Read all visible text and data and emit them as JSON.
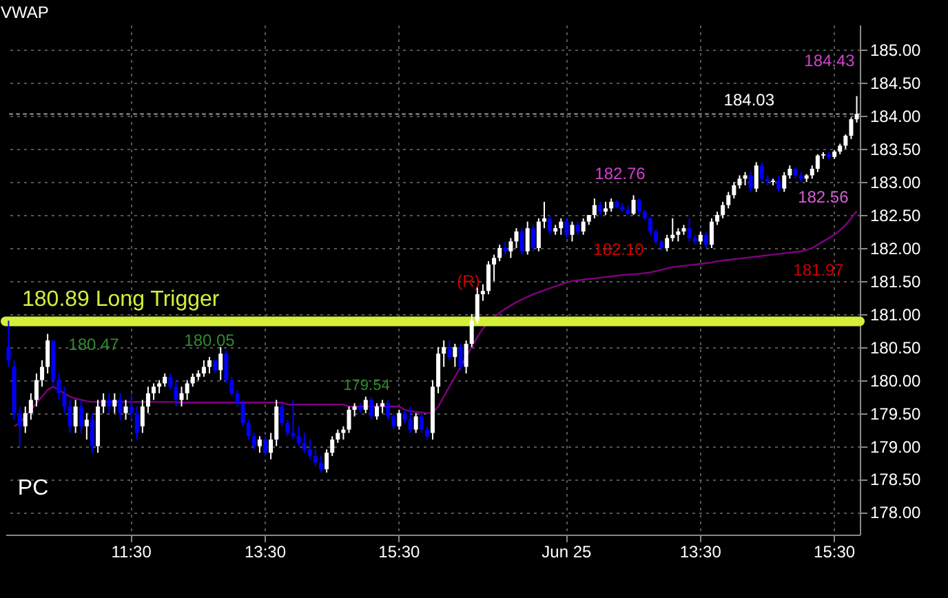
{
  "chart_data": {
    "type": "candlestick",
    "title": "VWAP",
    "categories": [
      null,
      null,
      null,
      null,
      null,
      null,
      null,
      null,
      null,
      null,
      null,
      null,
      null,
      null,
      null,
      null,
      null,
      null,
      null,
      null,
      null,
      null,
      "11:30",
      null,
      null,
      null,
      null,
      null,
      null,
      null,
      null,
      null,
      null,
      null,
      null,
      null,
      null,
      null,
      null,
      null,
      null,
      null,
      null,
      null,
      null,
      null,
      "13:30",
      null,
      null,
      null,
      null,
      null,
      null,
      null,
      null,
      null,
      null,
      null,
      null,
      null,
      null,
      null,
      null,
      null,
      null,
      null,
      null,
      null,
      null,
      null,
      "15:30",
      null,
      null,
      null,
      null,
      null,
      null,
      null,
      null,
      null,
      null,
      null,
      null,
      null,
      null,
      null,
      null,
      null,
      null,
      null,
      null,
      null,
      null,
      null,
      null,
      null,
      null,
      null,
      null,
      null,
      "Jun 25",
      null,
      null,
      null,
      null,
      null,
      null,
      null,
      null,
      null,
      null,
      null,
      null,
      null,
      null,
      null,
      null,
      null,
      null,
      null,
      null,
      null,
      null,
      null,
      "13:30",
      null,
      null,
      null,
      null,
      null,
      null,
      null,
      null,
      null,
      null,
      null,
      null,
      null,
      null,
      null,
      null,
      null,
      null,
      null,
      null,
      null,
      null,
      null,
      "15:30",
      null,
      null,
      null,
      null
    ],
    "ohlc": [
      [
        180.5,
        180.9,
        180.2,
        180.3
      ],
      [
        180.2,
        180.3,
        179.4,
        179.5
      ],
      [
        179.5,
        179.6,
        179.0,
        179.3
      ],
      [
        179.3,
        179.6,
        179.2,
        179.5
      ],
      [
        179.5,
        179.8,
        179.4,
        179.7
      ],
      [
        179.7,
        180.1,
        179.6,
        180.0
      ],
      [
        180.0,
        180.3,
        179.9,
        180.2
      ],
      [
        180.2,
        180.7,
        180.1,
        180.6
      ],
      [
        180.6,
        180.6,
        179.9,
        180.0
      ],
      [
        180.0,
        180.1,
        179.7,
        179.8
      ],
      [
        179.8,
        179.9,
        179.5,
        179.6
      ],
      [
        179.6,
        179.7,
        179.2,
        179.3
      ],
      [
        179.3,
        179.7,
        179.2,
        179.6
      ],
      [
        179.6,
        179.7,
        179.2,
        179.3
      ],
      [
        179.3,
        179.5,
        179.1,
        179.4
      ],
      [
        179.4,
        179.5,
        178.9,
        179.0
      ],
      [
        179.0,
        179.7,
        178.9,
        179.6
      ],
      [
        179.6,
        179.8,
        179.5,
        179.7
      ],
      [
        179.7,
        179.8,
        179.5,
        179.6
      ],
      [
        179.6,
        179.8,
        179.5,
        179.7
      ],
      [
        179.7,
        179.8,
        179.4,
        179.5
      ],
      [
        179.5,
        179.7,
        179.4,
        179.6
      ],
      [
        179.6,
        179.8,
        179.4,
        179.5
      ],
      [
        179.5,
        179.6,
        179.1,
        179.2
      ],
      [
        179.3,
        179.7,
        179.2,
        179.6
      ],
      [
        179.6,
        179.9,
        179.5,
        179.8
      ],
      [
        179.8,
        179.95,
        179.7,
        179.9
      ],
      [
        179.9,
        180.0,
        179.8,
        179.95
      ],
      [
        179.95,
        180.1,
        179.9,
        180.05
      ],
      [
        180.05,
        180.1,
        179.85,
        179.9
      ],
      [
        179.9,
        180.0,
        179.6,
        179.7
      ],
      [
        179.7,
        179.9,
        179.6,
        179.8
      ],
      [
        179.8,
        180.0,
        179.7,
        179.95
      ],
      [
        179.95,
        180.1,
        179.9,
        180.05
      ],
      [
        180.05,
        180.15,
        180.0,
        180.1
      ],
      [
        180.1,
        180.3,
        180.05,
        180.2
      ],
      [
        180.2,
        180.35,
        180.1,
        180.3
      ],
      [
        180.3,
        180.3,
        180.1,
        180.15
      ],
      [
        180.15,
        180.5,
        180.0,
        180.4
      ],
      [
        180.4,
        180.45,
        179.95,
        180.0
      ],
      [
        180.0,
        180.05,
        179.75,
        179.8
      ],
      [
        179.8,
        179.85,
        179.6,
        179.65
      ],
      [
        179.65,
        179.7,
        179.3,
        179.35
      ],
      [
        179.35,
        179.4,
        179.1,
        179.15
      ],
      [
        179.15,
        179.2,
        178.95,
        179.0
      ],
      [
        179.0,
        179.15,
        178.9,
        179.1
      ],
      [
        179.1,
        179.15,
        178.85,
        178.9
      ],
      [
        178.9,
        179.2,
        178.8,
        179.1
      ],
      [
        179.1,
        179.7,
        179.0,
        179.6
      ],
      [
        179.6,
        179.65,
        179.3,
        179.35
      ],
      [
        179.35,
        179.4,
        179.15,
        179.2
      ],
      [
        179.2,
        179.7,
        179.1,
        179.15
      ],
      [
        179.15,
        179.3,
        179.0,
        179.05
      ],
      [
        179.05,
        179.2,
        178.9,
        178.95
      ],
      [
        178.95,
        179.1,
        178.8,
        178.85
      ],
      [
        178.85,
        178.95,
        178.7,
        178.75
      ],
      [
        178.75,
        178.85,
        178.6,
        178.65
      ],
      [
        178.65,
        178.95,
        178.6,
        178.9
      ],
      [
        178.9,
        179.15,
        178.85,
        179.1
      ],
      [
        179.1,
        179.25,
        179.05,
        179.2
      ],
      [
        179.2,
        179.3,
        179.1,
        179.25
      ],
      [
        179.25,
        179.6,
        179.2,
        179.55
      ],
      [
        179.55,
        179.65,
        179.45,
        179.6
      ],
      [
        179.6,
        179.65,
        179.5,
        179.55
      ],
      [
        179.55,
        179.75,
        179.5,
        179.7
      ],
      [
        179.7,
        179.75,
        179.4,
        179.45
      ],
      [
        179.45,
        179.65,
        179.4,
        179.6
      ],
      [
        179.6,
        179.7,
        179.5,
        179.65
      ],
      [
        179.65,
        179.7,
        179.4,
        179.45
      ],
      [
        179.45,
        179.5,
        179.25,
        179.3
      ],
      [
        179.3,
        179.55,
        179.25,
        179.5
      ],
      [
        179.5,
        179.55,
        179.35,
        179.4
      ],
      [
        179.4,
        179.6,
        179.2,
        179.25
      ],
      [
        179.25,
        179.5,
        179.2,
        179.45
      ],
      [
        179.45,
        179.5,
        179.2,
        179.25
      ],
      [
        179.25,
        179.3,
        179.1,
        179.15
      ],
      [
        179.2,
        180.0,
        179.1,
        179.9
      ],
      [
        179.9,
        180.5,
        179.8,
        180.4
      ],
      [
        180.4,
        180.6,
        180.2,
        180.5
      ],
      [
        180.5,
        180.6,
        180.3,
        180.35
      ],
      [
        180.35,
        180.55,
        180.2,
        180.5
      ],
      [
        180.5,
        180.55,
        180.15,
        180.2
      ],
      [
        180.2,
        180.6,
        180.1,
        180.55
      ],
      [
        180.55,
        181.0,
        180.5,
        180.9
      ],
      [
        180.9,
        181.4,
        180.85,
        181.3
      ],
      [
        181.3,
        181.45,
        181.2,
        181.35
      ],
      [
        181.35,
        181.8,
        181.3,
        181.75
      ],
      [
        181.75,
        181.9,
        181.5,
        181.85
      ],
      [
        181.85,
        182.05,
        181.8,
        182.0
      ],
      [
        182.0,
        182.1,
        181.9,
        181.95
      ],
      [
        181.95,
        182.15,
        181.85,
        182.1
      ],
      [
        182.1,
        182.3,
        182.0,
        182.25
      ],
      [
        182.25,
        182.3,
        181.9,
        181.95
      ],
      [
        181.95,
        182.4,
        181.9,
        182.3
      ],
      [
        182.3,
        182.35,
        181.95,
        182.0
      ],
      [
        182.0,
        182.45,
        181.95,
        182.4
      ],
      [
        182.4,
        182.7,
        182.3,
        182.45
      ],
      [
        182.45,
        182.5,
        182.2,
        182.25
      ],
      [
        182.25,
        182.35,
        182.2,
        182.3
      ],
      [
        182.3,
        182.45,
        182.2,
        182.4
      ],
      [
        182.4,
        182.45,
        182.15,
        182.2
      ],
      [
        182.2,
        182.4,
        182.1,
        182.35
      ],
      [
        182.35,
        182.4,
        182.2,
        182.25
      ],
      [
        182.25,
        182.45,
        182.2,
        182.4
      ],
      [
        182.4,
        182.5,
        182.35,
        182.5
      ],
      [
        182.5,
        182.75,
        182.45,
        182.65
      ],
      [
        182.65,
        182.7,
        182.5,
        182.55
      ],
      [
        182.55,
        182.7,
        182.5,
        182.6
      ],
      [
        182.6,
        182.75,
        182.55,
        182.7
      ],
      [
        182.7,
        182.72,
        182.6,
        182.62
      ],
      [
        182.62,
        182.68,
        182.55,
        182.58
      ],
      [
        182.58,
        182.65,
        182.5,
        182.52
      ],
      [
        182.52,
        182.8,
        182.5,
        182.73
      ],
      [
        182.73,
        182.75,
        182.5,
        182.55
      ],
      [
        182.55,
        182.58,
        182.42,
        182.45
      ],
      [
        182.45,
        182.47,
        182.2,
        182.25
      ],
      [
        182.25,
        182.28,
        182.05,
        182.1
      ],
      [
        182.1,
        182.12,
        181.95,
        182.0
      ],
      [
        182.0,
        182.2,
        181.95,
        182.15
      ],
      [
        182.15,
        182.45,
        182.1,
        182.2
      ],
      [
        182.2,
        182.3,
        182.1,
        182.25
      ],
      [
        182.25,
        182.35,
        182.2,
        182.3
      ],
      [
        182.3,
        182.45,
        182.1,
        182.15
      ],
      [
        182.15,
        182.2,
        182.05,
        182.1
      ],
      [
        182.1,
        182.25,
        182.05,
        182.2
      ],
      [
        182.2,
        182.25,
        182.0,
        182.05
      ],
      [
        182.05,
        182.45,
        182.0,
        182.4
      ],
      [
        182.4,
        182.55,
        182.35,
        182.5
      ],
      [
        182.5,
        182.7,
        182.45,
        182.65
      ],
      [
        182.65,
        182.85,
        182.6,
        182.8
      ],
      [
        182.8,
        183.0,
        182.75,
        182.95
      ],
      [
        182.95,
        183.1,
        182.9,
        183.05
      ],
      [
        183.05,
        183.15,
        182.95,
        183.1
      ],
      [
        183.1,
        183.15,
        182.85,
        182.9
      ],
      [
        182.9,
        183.3,
        182.85,
        183.25
      ],
      [
        183.25,
        183.3,
        183.0,
        183.05
      ],
      [
        183.05,
        183.1,
        182.95,
        183.0
      ],
      [
        183.0,
        183.05,
        182.95,
        183.02
      ],
      [
        183.02,
        183.1,
        182.85,
        182.9
      ],
      [
        182.9,
        183.15,
        182.85,
        183.1
      ],
      [
        183.1,
        183.25,
        183.05,
        183.2
      ],
      [
        183.2,
        183.22,
        183.05,
        183.1
      ],
      [
        183.1,
        183.15,
        183.0,
        183.05
      ],
      [
        183.05,
        183.12,
        183.0,
        183.1
      ],
      [
        183.1,
        183.25,
        183.05,
        183.2
      ],
      [
        183.2,
        183.42,
        183.15,
        183.4
      ],
      [
        183.4,
        183.45,
        183.35,
        183.42
      ],
      [
        183.42,
        183.45,
        183.35,
        183.38
      ],
      [
        183.38,
        183.48,
        183.35,
        183.46
      ],
      [
        183.46,
        183.58,
        183.42,
        183.55
      ],
      [
        183.55,
        183.72,
        183.5,
        183.7
      ],
      [
        183.7,
        183.98,
        183.65,
        183.95
      ],
      [
        183.95,
        184.3,
        183.9,
        184.03
      ]
    ],
    "colors": [
      "#0000ff",
      "#0000ff",
      "#0000ff",
      "#ffffff",
      "#ffffff",
      "#ffffff",
      "#ffffff",
      "#ffffff",
      "#0000ff",
      "#0000ff",
      "#0000ff",
      "#0000ff",
      "#ffffff",
      "#0000ff",
      "#ffffff",
      "#0000ff",
      "#ffffff",
      "#ffffff",
      "#0000ff",
      "#ffffff",
      "#0000ff",
      "#ffffff",
      "#0000ff",
      "#0000ff",
      "#ffffff",
      "#ffffff",
      "#ffffff",
      "#ffffff",
      "#ffffff",
      "#0000ff",
      "#0000ff",
      "#ffffff",
      "#ffffff",
      "#ffffff",
      "#ffffff",
      "#ffffff",
      "#ffffff",
      "#0000ff",
      "#ffffff",
      "#0000ff",
      "#0000ff",
      "#0000ff",
      "#0000ff",
      "#0000ff",
      "#0000ff",
      "#ffffff",
      "#0000ff",
      "#ffffff",
      "#ffffff",
      "#0000ff",
      "#0000ff",
      "#0000ff",
      "#0000ff",
      "#0000ff",
      "#0000ff",
      "#0000ff",
      "#0000ff",
      "#ffffff",
      "#ffffff",
      "#ffffff",
      "#ffffff",
      "#ffffff",
      "#ffffff",
      "#0000ff",
      "#ffffff",
      "#0000ff",
      "#ffffff",
      "#ffffff",
      "#0000ff",
      "#0000ff",
      "#ffffff",
      "#0000ff",
      "#0000ff",
      "#ffffff",
      "#0000ff",
      "#0000ff",
      "#ffffff",
      "#ffffff",
      "#ffffff",
      "#0000ff",
      "#ffffff",
      "#0000ff",
      "#ffffff",
      "#ffffff",
      "#ffffff",
      "#ffffff",
      "#ffffff",
      "#ffffff",
      "#ffffff",
      "#0000ff",
      "#ffffff",
      "#ffffff",
      "#0000ff",
      "#ffffff",
      "#0000ff",
      "#ffffff",
      "#ffffff",
      "#0000ff",
      "#ffffff",
      "#ffffff",
      "#0000ff",
      "#ffffff",
      "#0000ff",
      "#ffffff",
      "#ffffff",
      "#ffffff",
      "#0000ff",
      "#ffffff",
      "#ffffff",
      "#0000ff",
      "#0000ff",
      "#0000ff",
      "#ffffff",
      "#0000ff",
      "#0000ff",
      "#0000ff",
      "#0000ff",
      "#0000ff",
      "#ffffff",
      "#ffffff",
      "#ffffff",
      "#ffffff",
      "#0000ff",
      "#0000ff",
      "#ffffff",
      "#0000ff",
      "#ffffff",
      "#ffffff",
      "#ffffff",
      "#ffffff",
      "#ffffff",
      "#ffffff",
      "#ffffff",
      "#0000ff",
      "#ffffff",
      "#0000ff",
      "#0000ff",
      "#ffffff",
      "#0000ff",
      "#ffffff",
      "#ffffff",
      "#0000ff",
      "#0000ff",
      "#ffffff",
      "#ffffff",
      "#ffffff",
      "#ffffff",
      "#0000ff",
      "#ffffff",
      "#ffffff",
      "#ffffff",
      "#ffffff",
      "#ffffff"
    ],
    "series": [
      {
        "type": "line",
        "color": "#800080",
        "values": [
          null,
          179.3,
          179.35,
          179.45,
          179.55,
          179.65,
          179.75,
          179.85,
          179.9,
          179.85,
          179.8,
          179.75,
          179.72,
          179.7,
          179.68,
          179.67,
          179.67,
          179.67,
          179.67,
          179.67,
          179.67,
          179.67,
          179.67,
          179.67,
          179.67,
          179.67,
          179.67,
          179.67,
          179.67,
          179.67,
          179.67,
          179.66,
          179.66,
          179.66,
          179.66,
          179.66,
          179.66,
          179.66,
          179.66,
          179.66,
          179.66,
          179.66,
          179.66,
          179.66,
          179.66,
          179.66,
          179.66,
          179.66,
          179.66,
          179.66,
          179.63,
          179.63,
          179.63,
          179.63,
          179.63,
          179.63,
          179.63,
          179.63,
          179.63,
          179.63,
          179.63,
          179.6,
          179.6,
          179.6,
          179.6,
          179.6,
          179.6,
          179.6,
          179.6,
          179.6,
          179.6,
          179.55,
          179.53,
          179.52,
          179.51,
          179.5,
          179.5,
          179.6,
          179.75,
          179.9,
          180.05,
          180.2,
          180.35,
          180.5,
          180.65,
          180.78,
          180.87,
          180.95,
          181.02,
          181.08,
          181.13,
          181.18,
          181.22,
          181.26,
          181.3,
          181.33,
          181.36,
          181.39,
          181.42,
          181.45,
          181.48,
          181.5,
          181.51,
          181.52,
          181.53,
          181.54,
          181.55,
          181.56,
          181.57,
          181.58,
          181.59,
          181.6,
          181.6,
          181.61,
          181.62,
          181.63,
          181.65,
          181.67,
          181.69,
          181.71,
          181.72,
          181.73,
          181.74,
          181.75,
          181.76,
          181.77,
          181.78,
          181.8,
          181.81,
          181.82,
          181.83,
          181.84,
          181.85,
          181.86,
          181.87,
          181.88,
          181.89,
          181.9,
          181.91,
          181.92,
          181.93,
          181.94,
          181.95,
          181.97,
          182.0,
          182.05,
          182.1,
          182.15,
          182.2,
          182.27,
          182.35,
          182.45,
          182.56
        ],
        "value_labels": [
          null,
          null,
          null,
          null,
          null,
          null,
          null,
          null,
          null,
          null,
          null,
          null,
          null,
          null,
          null,
          null,
          null,
          null,
          null,
          null,
          null,
          null,
          null,
          null,
          null,
          null,
          null,
          null,
          null,
          null,
          null,
          null,
          null,
          null,
          null,
          null,
          null,
          null,
          null,
          null,
          null,
          null,
          null,
          null,
          null,
          null,
          null,
          null,
          null,
          null,
          null,
          null,
          null,
          null,
          null,
          null,
          null,
          null,
          null,
          null,
          null,
          null,
          null,
          null,
          null,
          null,
          null,
          null,
          null,
          null,
          null,
          null,
          null,
          null,
          null,
          null,
          null,
          null,
          null,
          null,
          null,
          null,
          null,
          null,
          null,
          null,
          null,
          null,
          null,
          null,
          null,
          null,
          null,
          null,
          null,
          null,
          null,
          null,
          null,
          null,
          null,
          null,
          null,
          null,
          null,
          null,
          null,
          null,
          null,
          null,
          null,
          null,
          null,
          null,
          null,
          null,
          null,
          null,
          null,
          null,
          null,
          null,
          null,
          null,
          null,
          null,
          null,
          null,
          null,
          null,
          null,
          null,
          null,
          null,
          null,
          null,
          null,
          null,
          null,
          null,
          null,
          null,
          null,
          null,
          null,
          null,
          null,
          null,
          null,
          null,
          null,
          null,
          "182.56"
        ]
      }
    ],
    "ylim": [
      177.66,
      185.38
    ],
    "yticks": [
      {
        "value": 178,
        "label": "178.00"
      },
      {
        "value": 178.5,
        "label": "178.50"
      },
      {
        "value": 179,
        "label": "179.00"
      },
      {
        "value": 179.5,
        "label": "179.50"
      },
      {
        "value": 180,
        "label": "180.00"
      },
      {
        "value": 180.5,
        "label": "180.50"
      },
      {
        "value": 181,
        "label": "181.00"
      },
      {
        "value": 181.5,
        "label": "181.50"
      },
      {
        "value": 182,
        "label": "182.00"
      },
      {
        "value": 182.5,
        "label": "182.50"
      },
      {
        "value": 183,
        "label": "183.00"
      },
      {
        "value": 183.5,
        "label": "183.50"
      },
      {
        "value": 184,
        "label": "184.00"
      },
      {
        "value": 184.5,
        "label": "184.50"
      },
      {
        "value": 185,
        "label": "185.00"
      }
    ],
    "ref_lines": [
      {
        "axis": "y",
        "value": 180.89,
        "label": "180.89 Long Trigger",
        "color": "#d4ee3a",
        "line_style": "solid"
      },
      {
        "axis": "y",
        "value": 184.03,
        "label": "184.03",
        "color": "#9a9a9a",
        "line_style": "dotted"
      }
    ],
    "annotations": [
      "182.10",
      "181.97",
      "180.47",
      "182.76",
      "(R)",
      "184.43",
      "179.54",
      "180.05",
      "PC"
    ],
    "grid": true
  }
}
